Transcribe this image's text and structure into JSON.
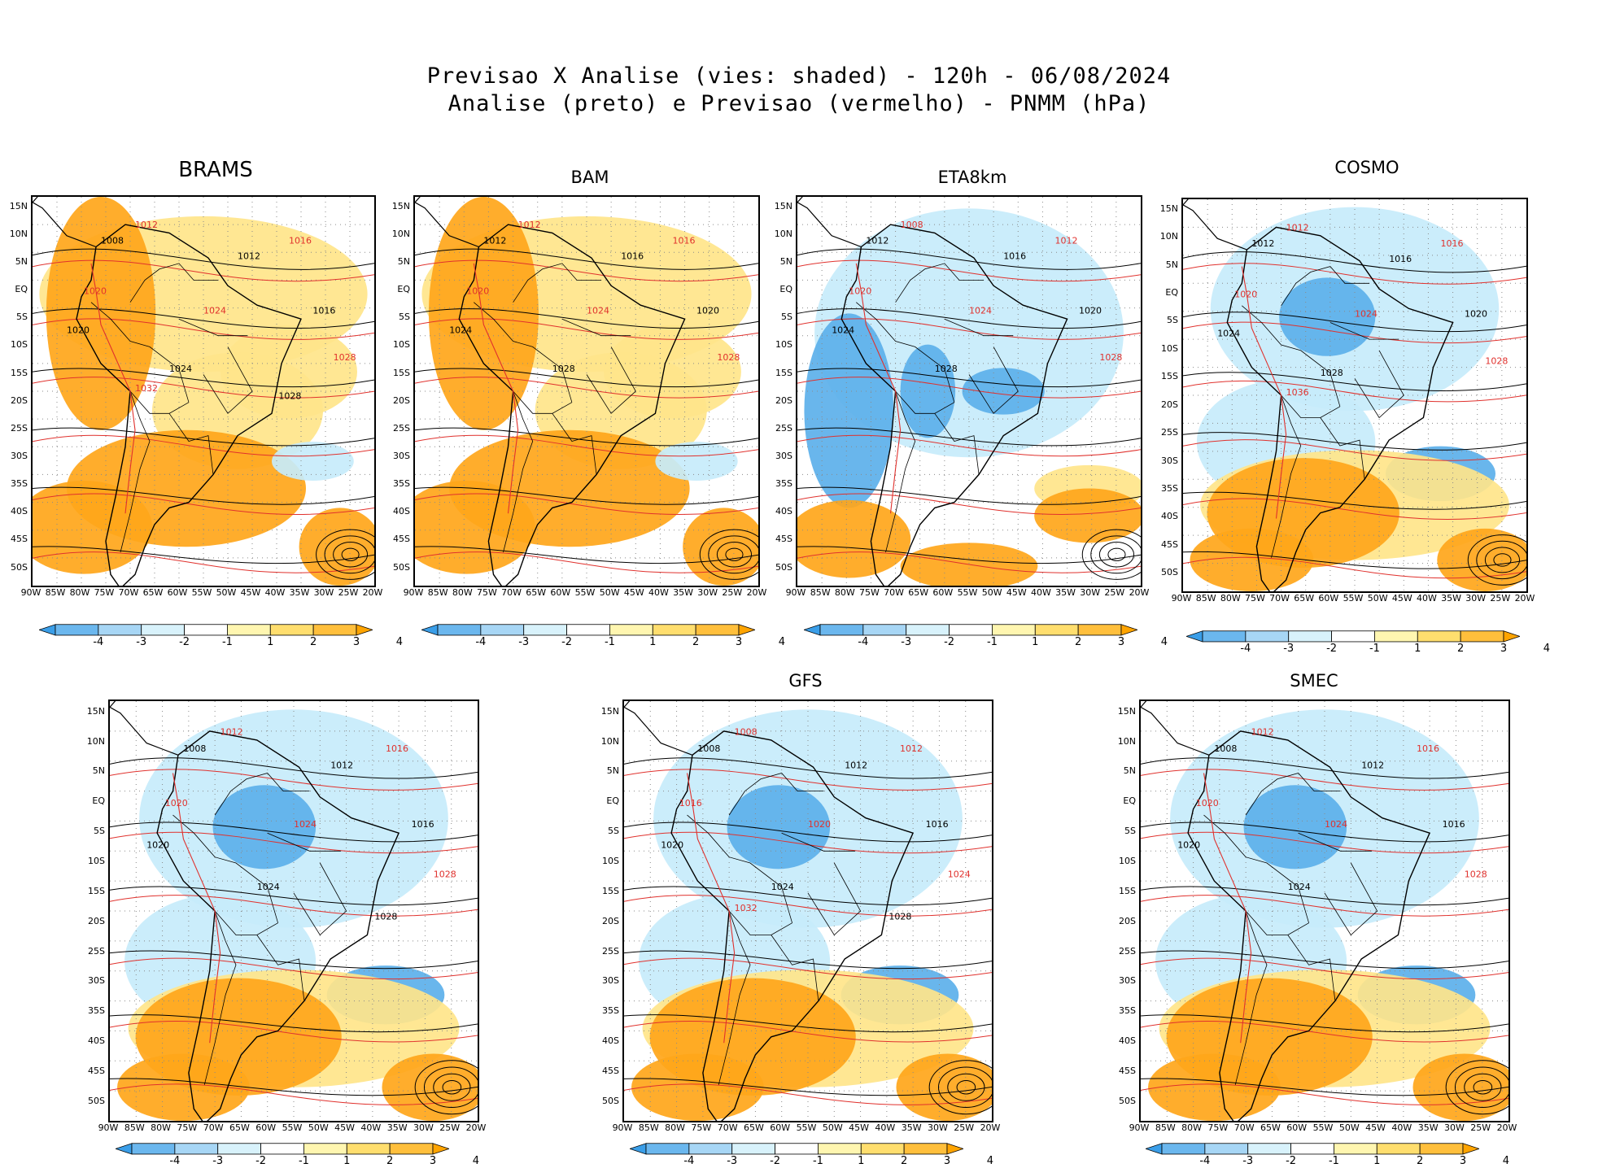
{
  "title": {
    "line1": "Previsao X Analise (vies: shaded) - 120h - 06/08/2024",
    "line2": "Analise (preto) e Previsao (vermelho) - PNMM (hPa)"
  },
  "lat_labels": [
    "15N",
    "10N",
    "5N",
    "EQ",
    "5S",
    "10S",
    "15S",
    "20S",
    "25S",
    "30S",
    "35S",
    "40S",
    "45S",
    "50S"
  ],
  "lon_labels": [
    "90W",
    "85W",
    "80W",
    "75W",
    "70W",
    "65W",
    "60W",
    "55W",
    "50W",
    "45W",
    "40W",
    "35W",
    "30W",
    "25W",
    "20W"
  ],
  "colorbar": {
    "ticks": [
      "-4",
      "-3",
      "-2",
      "-1",
      "1",
      "2",
      "3",
      "4"
    ],
    "colors": [
      "#3a9ee8",
      "#6bb7ee",
      "#a7d6f5",
      "#d8f2fb",
      "#ffffff",
      "#fff6b0",
      "#ffde6e",
      "#ffbf3c",
      "#ffa400"
    ]
  },
  "palette": {
    "neg_strong": "#5cb0ea",
    "neg_light": "#c7ecfb",
    "pos_light": "#ffe58a",
    "pos_strong": "#ffa61a",
    "analysis_line": "#000000",
    "forecast_line": "#e0312d"
  },
  "panels": [
    {
      "id": "brams",
      "title": "BRAMS",
      "bias": "positive",
      "labels": {
        "black": [
          "1008",
          "1012",
          "1016",
          "1020",
          "1024",
          "1028"
        ],
        "red": [
          "1012",
          "1016",
          "1020",
          "1024",
          "1028",
          "1032"
        ]
      }
    },
    {
      "id": "bam",
      "title": "BAM",
      "bias": "positive",
      "labels": {
        "black": [
          "1012",
          "1016",
          "1020",
          "1024",
          "1028"
        ],
        "red": [
          "1012",
          "1016",
          "1020",
          "1024",
          "1028"
        ]
      }
    },
    {
      "id": "eta8km",
      "title": "ETA8km",
      "bias": "negative",
      "labels": {
        "black": [
          "1012",
          "1016",
          "1020",
          "1024",
          "1028"
        ],
        "red": [
          "1008",
          "1012",
          "1020",
          "1024",
          "1028"
        ]
      }
    },
    {
      "id": "cosmo",
      "title": "COSMO",
      "bias": "mixed",
      "labels": {
        "black": [
          "1012",
          "1016",
          "1020",
          "1024",
          "1028"
        ],
        "red": [
          "1012",
          "1016",
          "1020",
          "1024",
          "1028",
          "1036"
        ]
      }
    },
    {
      "id": "panel5",
      "title": "",
      "bias": "mixed",
      "labels": {
        "black": [
          "1008",
          "1012",
          "1016",
          "1020",
          "1024",
          "1028"
        ],
        "red": [
          "1012",
          "1016",
          "1020",
          "1024",
          "1028"
        ]
      }
    },
    {
      "id": "gfs",
      "title": "GFS",
      "bias": "mixed",
      "labels": {
        "black": [
          "1008",
          "1012",
          "1016",
          "1020",
          "1024",
          "1028"
        ],
        "red": [
          "1008",
          "1012",
          "1016",
          "1020",
          "1024",
          "1032"
        ]
      }
    },
    {
      "id": "smec",
      "title": "SMEC",
      "bias": "mixed",
      "labels": {
        "black": [
          "1008",
          "1012",
          "1016",
          "1020",
          "1024"
        ],
        "red": [
          "1012",
          "1016",
          "1020",
          "1024",
          "1028"
        ]
      }
    }
  ]
}
